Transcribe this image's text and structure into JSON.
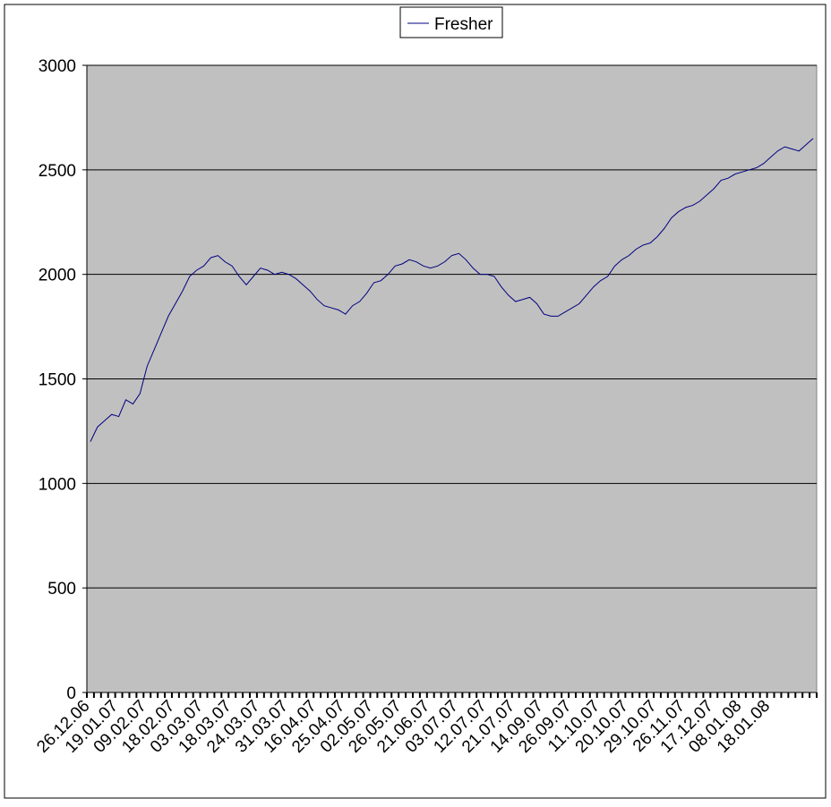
{
  "chart_data": {
    "type": "line",
    "categories": [
      "26.12.06",
      null,
      null,
      null,
      "19.01.07",
      null,
      null,
      null,
      "09.02.07",
      null,
      null,
      null,
      "18.02.07",
      null,
      null,
      null,
      "03.03.07",
      null,
      null,
      null,
      "18.03.07",
      null,
      null,
      null,
      "24.03.07",
      null,
      null,
      null,
      "31.03.07",
      null,
      null,
      null,
      "16.04.07",
      null,
      null,
      null,
      "25.04.07",
      null,
      null,
      null,
      "02.05.07",
      null,
      null,
      null,
      "26.05.07",
      null,
      null,
      null,
      "21.06.07",
      null,
      null,
      null,
      "03.07.07",
      null,
      null,
      null,
      "12.07.07",
      null,
      null,
      null,
      "21.07.07",
      null,
      null,
      null,
      "14.09.07",
      null,
      null,
      null,
      "26.09.07",
      null,
      null,
      null,
      "11.10.07",
      null,
      null,
      null,
      "20.10.07",
      null,
      null,
      null,
      "29.10.07",
      null,
      null,
      null,
      "26.11.07",
      null,
      null,
      null,
      "17.12.07",
      null,
      null,
      null,
      "08.01.08",
      null,
      null,
      null,
      "18.01.08",
      null,
      null,
      null,
      null,
      null,
      null
    ],
    "series": [
      {
        "name": "Fresher",
        "color": "#000080",
        "values": [
          1200,
          1270,
          1300,
          1330,
          1320,
          1400,
          1380,
          1430,
          1560,
          1640,
          1720,
          1800,
          1860,
          1920,
          1990,
          2020,
          2040,
          2080,
          2090,
          2060,
          2040,
          1990,
          1950,
          1990,
          2030,
          2020,
          2000,
          2010,
          2000,
          1980,
          1950,
          1920,
          1880,
          1850,
          1840,
          1830,
          1810,
          1850,
          1870,
          1910,
          1960,
          1970,
          2000,
          2040,
          2050,
          2070,
          2060,
          2040,
          2030,
          2040,
          2060,
          2090,
          2100,
          2070,
          2030,
          2000,
          2000,
          1990,
          1940,
          1900,
          1870,
          1880,
          1890,
          1860,
          1810,
          1800,
          1800,
          1820,
          1840,
          1860,
          1900,
          1940,
          1970,
          1990,
          2040,
          2070,
          2090,
          2120,
          2140,
          2150,
          2180,
          2220,
          2270,
          2300,
          2320,
          2330,
          2350,
          2380,
          2410,
          2450,
          2460,
          2480,
          2490,
          2500,
          2510,
          2530,
          2560,
          2590,
          2610,
          2600,
          2590,
          2620,
          2650
        ]
      }
    ],
    "ylim": [
      0,
      3000
    ],
    "yticks": [
      0,
      500,
      1000,
      1500,
      2000,
      2500,
      3000
    ],
    "grid": true,
    "legend": "top",
    "plot_background": "#c0c0c0"
  }
}
